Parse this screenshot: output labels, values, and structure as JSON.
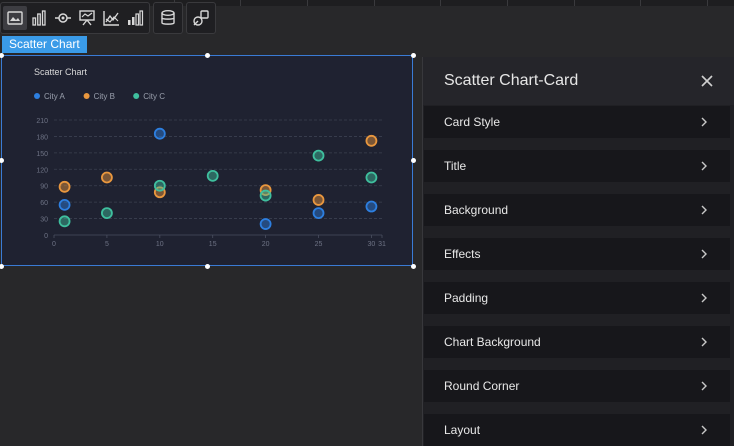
{
  "toolbar": {
    "groups": [
      [
        "image-chart-icon",
        "bar-chart-icon",
        "scatter-chart-icon",
        "board-icon",
        "axis-chart-icon",
        "bar-stack-icon"
      ],
      [
        "database-icon"
      ],
      [
        "shapes-icon"
      ]
    ]
  },
  "component_label": "Scatter Chart",
  "panel": {
    "title": "Scatter Chart-Card",
    "sections": [
      "Card Style",
      "Title",
      "Background",
      "Effects",
      "Padding",
      "Chart Background",
      "Round Corner",
      "Layout"
    ]
  },
  "colors": {
    "accent": "#3a9be8",
    "city_a": "#2d7fe0",
    "city_b": "#e9973e",
    "city_c": "#3fbf9e"
  },
  "chart_data": {
    "type": "scatter",
    "title": "Scatter Chart",
    "xlabel": "",
    "ylabel": "",
    "xlim": [
      0,
      31
    ],
    "ylim": [
      0,
      210
    ],
    "x_ticks": [
      "0",
      "5",
      "10",
      "15",
      "20",
      "25",
      "30",
      "31"
    ],
    "y_ticks": [
      "0",
      "30",
      "60",
      "90",
      "120",
      "150",
      "180",
      "210"
    ],
    "legend_position": "top-left",
    "series": [
      {
        "name": "City A",
        "color": "#2d7fe0",
        "points": [
          [
            1,
            55
          ],
          [
            10,
            185
          ],
          [
            20,
            20
          ],
          [
            25,
            40
          ],
          [
            30,
            52
          ]
        ]
      },
      {
        "name": "City B",
        "color": "#e9973e",
        "points": [
          [
            1,
            88
          ],
          [
            5,
            105
          ],
          [
            10,
            78
          ],
          [
            20,
            82
          ],
          [
            25,
            64
          ],
          [
            30,
            172
          ]
        ]
      },
      {
        "name": "City C",
        "color": "#3fbf9e",
        "points": [
          [
            1,
            25
          ],
          [
            5,
            40
          ],
          [
            10,
            90
          ],
          [
            15,
            108
          ],
          [
            20,
            72
          ],
          [
            25,
            145
          ],
          [
            30,
            105
          ]
        ]
      }
    ]
  }
}
